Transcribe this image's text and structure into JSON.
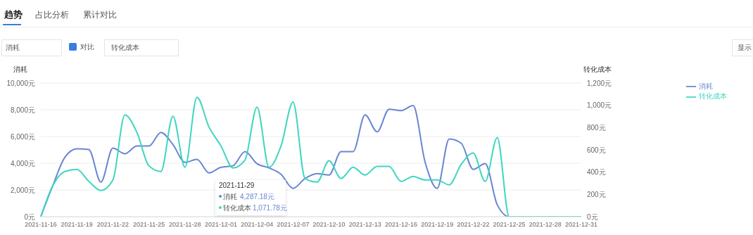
{
  "chart_data": {
    "type": "line",
    "ylabel": "消耗",
    "y2label": "转化成本",
    "categories": [
      "2021-11-16",
      null,
      null,
      "2021-11-19",
      null,
      null,
      "2021-11-22",
      null,
      null,
      "2021-11-25",
      null,
      null,
      "2021-11-28",
      null,
      null,
      "2021-12-01",
      null,
      null,
      "2021-12-04",
      null,
      null,
      "2021-12-07",
      null,
      null,
      "2021-12-10",
      null,
      null,
      "2021-12-13",
      null,
      null,
      "2021-12-16",
      null,
      null,
      "2021-12-19",
      null,
      null,
      "2021-12-22",
      null,
      null,
      "2021-12-25",
      null,
      null,
      "2021-12-28",
      null,
      null,
      "2021-12-31"
    ],
    "series": [
      {
        "name": "消耗",
        "color": "#6a86d2",
        "values": [
          0,
          2330,
          4440,
          5080,
          5030,
          2590,
          5130,
          4710,
          5290,
          5290,
          6300,
          5400,
          4070,
          4287.18,
          3280,
          3700,
          3810,
          4870,
          3970,
          3650,
          3170,
          2120,
          2860,
          3230,
          3120,
          4870,
          4870,
          7620,
          6350,
          8040,
          7940,
          8310,
          4070,
          2120,
          5820,
          5500,
          3540,
          3970,
          900,
          0,
          0,
          null,
          null,
          null,
          null,
          null
        ]
      },
      {
        "name": "转化成本",
        "color": "#3fd6c0",
        "axis": "y2",
        "values": [
          0,
          279,
          406,
          425,
          317,
          235,
          330,
          914,
          756,
          457,
          406,
          902,
          444,
          1071.78,
          806,
          635,
          438,
          508,
          984,
          444,
          635,
          1029,
          343,
          311,
          502,
          343,
          444,
          375,
          451,
          451,
          317,
          362,
          330,
          330,
          286,
          470,
          571,
          317,
          711,
          0,
          0,
          0,
          0,
          0,
          0,
          0
        ]
      }
    ],
    "ylim": [
      0,
      10000
    ],
    "yticks": [
      {
        "value": 0,
        "label": "0元"
      },
      {
        "value": 2000,
        "label": "2,000元"
      },
      {
        "value": 4000,
        "label": "4,000元"
      },
      {
        "value": 6000,
        "label": "6,000元"
      },
      {
        "value": 8000,
        "label": "8,000元"
      },
      {
        "value": 10000,
        "label": "10,000元"
      }
    ],
    "y2lim": [
      0,
      1200
    ],
    "y2ticks": [
      {
        "value": 0,
        "label": "0元"
      },
      {
        "value": 200,
        "label": "200元"
      },
      {
        "value": 400,
        "label": "400元"
      },
      {
        "value": 600,
        "label": "600元"
      },
      {
        "value": 800,
        "label": "800元"
      },
      {
        "value": 1000,
        "label": "1,000元"
      },
      {
        "value": 1200,
        "label": "1,200元"
      }
    ],
    "grid": "y",
    "legend": "top right",
    "marker": "none",
    "line_style": "solid",
    "annotations": [
      "趋势",
      "占比分析",
      "累计对比",
      "消耗",
      "对比",
      "转化成本",
      "显示",
      "2021-11-29",
      "消耗",
      "4,287.18元",
      "转化成本",
      "1,071.78元"
    ]
  }
}
